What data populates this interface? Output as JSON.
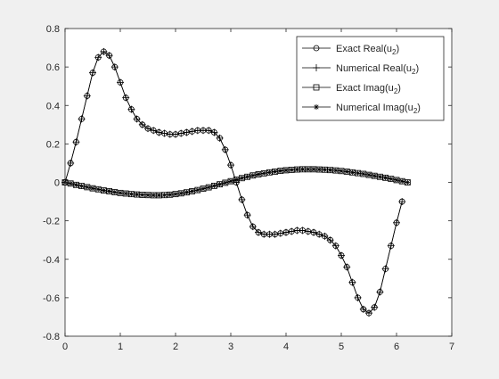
{
  "chart_data": {
    "type": "line",
    "title": "",
    "xlabel": "",
    "ylabel": "",
    "xlim": [
      0,
      7
    ],
    "ylim": [
      -0.8,
      0.8
    ],
    "xticks": [
      0,
      1,
      2,
      3,
      4,
      5,
      6,
      7
    ],
    "yticks": [
      -0.8,
      -0.6,
      -0.4,
      -0.2,
      0,
      0.2,
      0.4,
      0.6,
      0.8
    ],
    "xtick_labels": [
      "0",
      "1",
      "2",
      "3",
      "4",
      "5",
      "6",
      "7"
    ],
    "ytick_labels": [
      "-0.8",
      "-0.6",
      "-0.4",
      "-0.2",
      "0",
      "0.2",
      "0.4",
      "0.6",
      "0.8"
    ],
    "grid": false,
    "legend_position": "top-right",
    "x": [
      0.0,
      0.1,
      0.2,
      0.3,
      0.4,
      0.5,
      0.6,
      0.7,
      0.8,
      0.9,
      1.0,
      1.1,
      1.2,
      1.3,
      1.4,
      1.5,
      1.6,
      1.7,
      1.8,
      1.9,
      2.0,
      2.1,
      2.2,
      2.3,
      2.4,
      2.5,
      2.6,
      2.7,
      2.8,
      2.9,
      3.0,
      3.1,
      3.2,
      3.3,
      3.4,
      3.5,
      3.6,
      3.7,
      3.8,
      3.9,
      4.0,
      4.1,
      4.2,
      4.3,
      4.4,
      4.5,
      4.6,
      4.7,
      4.8,
      4.9,
      5.0,
      5.1,
      5.2,
      5.3,
      5.4,
      5.5,
      5.6,
      5.7,
      5.8,
      5.9,
      6.0,
      6.1,
      6.2
    ],
    "series": [
      {
        "name": "Exact Real(u2)",
        "label_main": "Exact Real(u",
        "label_sub": "2",
        "label_end": ")",
        "marker": "circle",
        "values": [
          0.0,
          0.1,
          0.21,
          0.33,
          0.45,
          0.57,
          0.65,
          0.68,
          0.66,
          0.6,
          0.52,
          0.44,
          0.38,
          0.33,
          0.3,
          0.28,
          0.27,
          0.26,
          0.255,
          0.25,
          0.25,
          0.255,
          0.26,
          0.265,
          0.27,
          0.27,
          0.27,
          0.26,
          0.23,
          0.17,
          0.09,
          0.0,
          -0.09,
          -0.17,
          -0.23,
          -0.26,
          -0.27,
          -0.27,
          -0.27,
          -0.265,
          -0.26,
          -0.255,
          -0.25,
          -0.25,
          -0.255,
          -0.26,
          -0.27,
          -0.28,
          -0.3,
          -0.33,
          -0.38,
          -0.44,
          -0.52,
          -0.6,
          -0.66,
          -0.68,
          -0.65,
          -0.57,
          -0.45,
          -0.33,
          -0.21,
          -0.1,
          null
        ]
      },
      {
        "name": "Numerical Real(u2)",
        "label_main": "Numerical Real(u",
        "label_sub": "2",
        "label_end": ")",
        "marker": "plus",
        "values": [
          0.0,
          0.1,
          0.21,
          0.33,
          0.45,
          0.57,
          0.65,
          0.68,
          0.66,
          0.6,
          0.52,
          0.44,
          0.38,
          0.33,
          0.3,
          0.28,
          0.27,
          0.26,
          0.255,
          0.25,
          0.25,
          0.255,
          0.26,
          0.265,
          0.27,
          0.27,
          0.27,
          0.26,
          0.23,
          0.17,
          0.09,
          0.0,
          -0.09,
          -0.17,
          -0.23,
          -0.26,
          -0.27,
          -0.27,
          -0.27,
          -0.265,
          -0.26,
          -0.255,
          -0.25,
          -0.25,
          -0.255,
          -0.26,
          -0.27,
          -0.28,
          -0.3,
          -0.33,
          -0.38,
          -0.44,
          -0.52,
          -0.6,
          -0.66,
          -0.68,
          -0.65,
          -0.57,
          -0.45,
          -0.33,
          -0.21,
          -0.1,
          null
        ]
      },
      {
        "name": "Exact Imag(u2)",
        "label_main": "Exact Imag(u",
        "label_sub": "2",
        "label_end": ")",
        "marker": "square",
        "values": [
          0.0,
          -0.006,
          -0.013,
          -0.019,
          -0.025,
          -0.031,
          -0.036,
          -0.042,
          -0.046,
          -0.051,
          -0.055,
          -0.058,
          -0.061,
          -0.063,
          -0.065,
          -0.066,
          -0.067,
          -0.067,
          -0.066,
          -0.064,
          -0.061,
          -0.057,
          -0.052,
          -0.046,
          -0.04,
          -0.033,
          -0.026,
          -0.018,
          -0.01,
          -0.002,
          0.006,
          0.014,
          0.022,
          0.029,
          0.036,
          0.042,
          0.047,
          0.052,
          0.056,
          0.06,
          0.063,
          0.065,
          0.067,
          0.068,
          0.068,
          0.068,
          0.067,
          0.066,
          0.064,
          0.062,
          0.059,
          0.056,
          0.052,
          0.048,
          0.044,
          0.039,
          0.034,
          0.029,
          0.024,
          0.018,
          0.012,
          0.006,
          0.0
        ]
      },
      {
        "name": "Numerical Imag(u2)",
        "label_main": "Numerical Imag(u",
        "label_sub": "2",
        "label_end": ")",
        "marker": "asterisk",
        "values": [
          0.0,
          -0.006,
          -0.013,
          -0.019,
          -0.025,
          -0.031,
          -0.036,
          -0.042,
          -0.046,
          -0.051,
          -0.055,
          -0.058,
          -0.061,
          -0.063,
          -0.065,
          -0.066,
          -0.067,
          -0.067,
          -0.066,
          -0.064,
          -0.061,
          -0.057,
          -0.052,
          -0.046,
          -0.04,
          -0.033,
          -0.026,
          -0.018,
          -0.01,
          -0.002,
          0.006,
          0.014,
          0.022,
          0.029,
          0.036,
          0.042,
          0.047,
          0.052,
          0.056,
          0.06,
          0.063,
          0.065,
          0.067,
          0.068,
          0.068,
          0.068,
          0.067,
          0.066,
          0.064,
          0.062,
          0.059,
          0.056,
          0.052,
          0.048,
          0.044,
          0.039,
          0.034,
          0.029,
          0.024,
          0.018,
          0.012,
          0.006,
          0.0
        ]
      }
    ]
  }
}
